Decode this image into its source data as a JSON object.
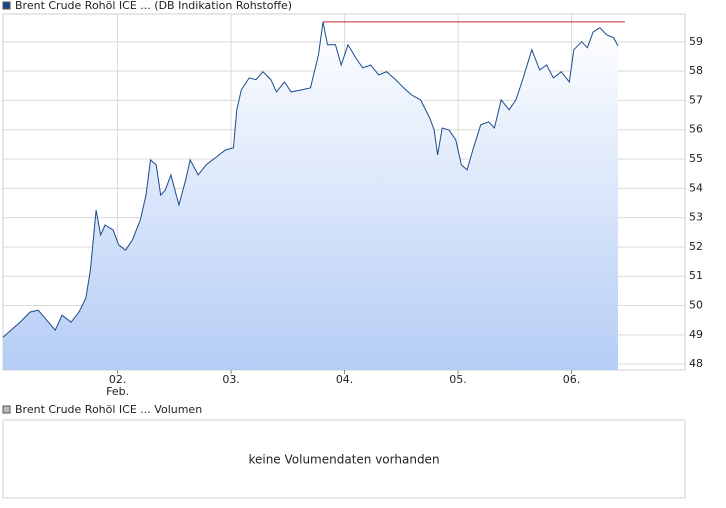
{
  "chart_data": {
    "type": "line",
    "series": [
      {
        "name": "Brent Crude Rohöl ICE ... (DB Indikation Rohstoffe)",
        "color": "#1a4b8c",
        "values": [
          48.92,
          49.16,
          49.43,
          49.78,
          49.84,
          49.57,
          49.16,
          49.67,
          49.43,
          49.78,
          50.25,
          51.21,
          53.26,
          52.41,
          52.75,
          52.58,
          52.07,
          51.89,
          52.24,
          52.92,
          53.77,
          54.97,
          54.8,
          53.77,
          53.94,
          54.46,
          53.43,
          54.29,
          54.97,
          54.46,
          54.8,
          55.04,
          55.31,
          55.38,
          56.68,
          57.36,
          57.77,
          57.71,
          57.98,
          57.71,
          57.29,
          57.63,
          57.29,
          57.36,
          57.43,
          58.56,
          59.68,
          58.9,
          58.9,
          58.21,
          58.9,
          58.45,
          58.11,
          58.21,
          57.87,
          57.98,
          57.71,
          57.43,
          57.19,
          57.02,
          56.4,
          55.99,
          55.14,
          56.06,
          55.99,
          55.65,
          54.8,
          54.63,
          55.31,
          56.17,
          56.27,
          56.06,
          57.02,
          56.68,
          57.02,
          57.71,
          58.73,
          58.04,
          58.21,
          57.77,
          57.98,
          57.63,
          58.73,
          59.0,
          58.8,
          59.34,
          59.48,
          59.24,
          59.14,
          58.86
        ]
      }
    ],
    "x": [
      0.99,
      1.06,
      1.14,
      1.23,
      1.3,
      1.36,
      1.45,
      1.51,
      1.59,
      1.66,
      1.72,
      1.76,
      1.81,
      1.85,
      1.89,
      1.96,
      2.01,
      2.07,
      2.13,
      2.2,
      2.25,
      2.29,
      2.34,
      2.38,
      2.42,
      2.47,
      2.54,
      2.6,
      2.64,
      2.71,
      2.78,
      2.86,
      2.95,
      3.02,
      3.05,
      3.09,
      3.16,
      3.22,
      3.28,
      3.35,
      3.4,
      3.47,
      3.53,
      3.62,
      3.7,
      3.77,
      3.81,
      3.85,
      3.92,
      3.97,
      4.03,
      4.1,
      4.16,
      4.23,
      4.3,
      4.37,
      4.45,
      4.52,
      4.59,
      4.67,
      4.75,
      4.79,
      4.82,
      4.86,
      4.92,
      4.98,
      5.03,
      5.08,
      5.13,
      5.2,
      5.27,
      5.32,
      5.38,
      5.45,
      5.51,
      5.57,
      5.65,
      5.72,
      5.78,
      5.84,
      5.91,
      5.98,
      6.02,
      6.09,
      6.14,
      6.19,
      6.25,
      6.31,
      6.37,
      6.41
    ],
    "xlim": [
      0.99,
      7.0
    ],
    "xticks": [
      {
        "value": 2,
        "label": "02."
      },
      {
        "value": 3,
        "label": "03."
      },
      {
        "value": 4,
        "label": "04."
      },
      {
        "value": 5,
        "label": "05."
      },
      {
        "value": 6,
        "label": "06."
      }
    ],
    "month_label": "Feb.",
    "ylim": [
      47.8,
      59.95
    ],
    "yticks": [
      48,
      49,
      50,
      51,
      52,
      53,
      54,
      55,
      56,
      57,
      58,
      59
    ],
    "grid": true,
    "fill_top_color": "#ffffff",
    "fill_bottom_color": "#b5cdf5",
    "reference_line": {
      "value": 59.68,
      "x": [
        3.81,
        6.47
      ],
      "color": "#c0272d"
    }
  },
  "volume_panel": {
    "legend": "Brent Crude Rohöl ICE ... Volumen",
    "message": "keine Volumendaten vorhanden"
  }
}
